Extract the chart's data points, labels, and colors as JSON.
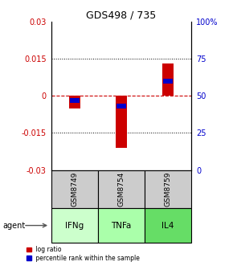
{
  "title": "GDS498 / 735",
  "samples": [
    "IFNg",
    "TNFa",
    "IL4"
  ],
  "sample_ids": [
    "GSM8749",
    "GSM8754",
    "GSM8759"
  ],
  "log_ratios": [
    -0.005,
    -0.021,
    0.013
  ],
  "percentile_ranks": [
    47,
    43,
    60
  ],
  "ylim_left": [
    -0.03,
    0.03
  ],
  "ylim_right": [
    0,
    100
  ],
  "yticks_left": [
    -0.03,
    -0.015,
    0,
    0.015,
    0.03
  ],
  "yticks_right": [
    0,
    25,
    50,
    75,
    100
  ],
  "ytick_labels_left": [
    "-0.03",
    "-0.015",
    "0",
    "0.015",
    "0.03"
  ],
  "ytick_labels_right": [
    "0",
    "25",
    "50",
    "75",
    "100%"
  ],
  "dotted_yticks": [
    -0.015,
    0.015
  ],
  "zero_line_color": "#cc0000",
  "bar_color_red": "#cc0000",
  "bar_color_blue": "#0000cc",
  "agent_colors": [
    "#ccffcc",
    "#aaffaa",
    "#66dd66"
  ],
  "sample_bg_color": "#cccccc",
  "bar_width": 0.25
}
